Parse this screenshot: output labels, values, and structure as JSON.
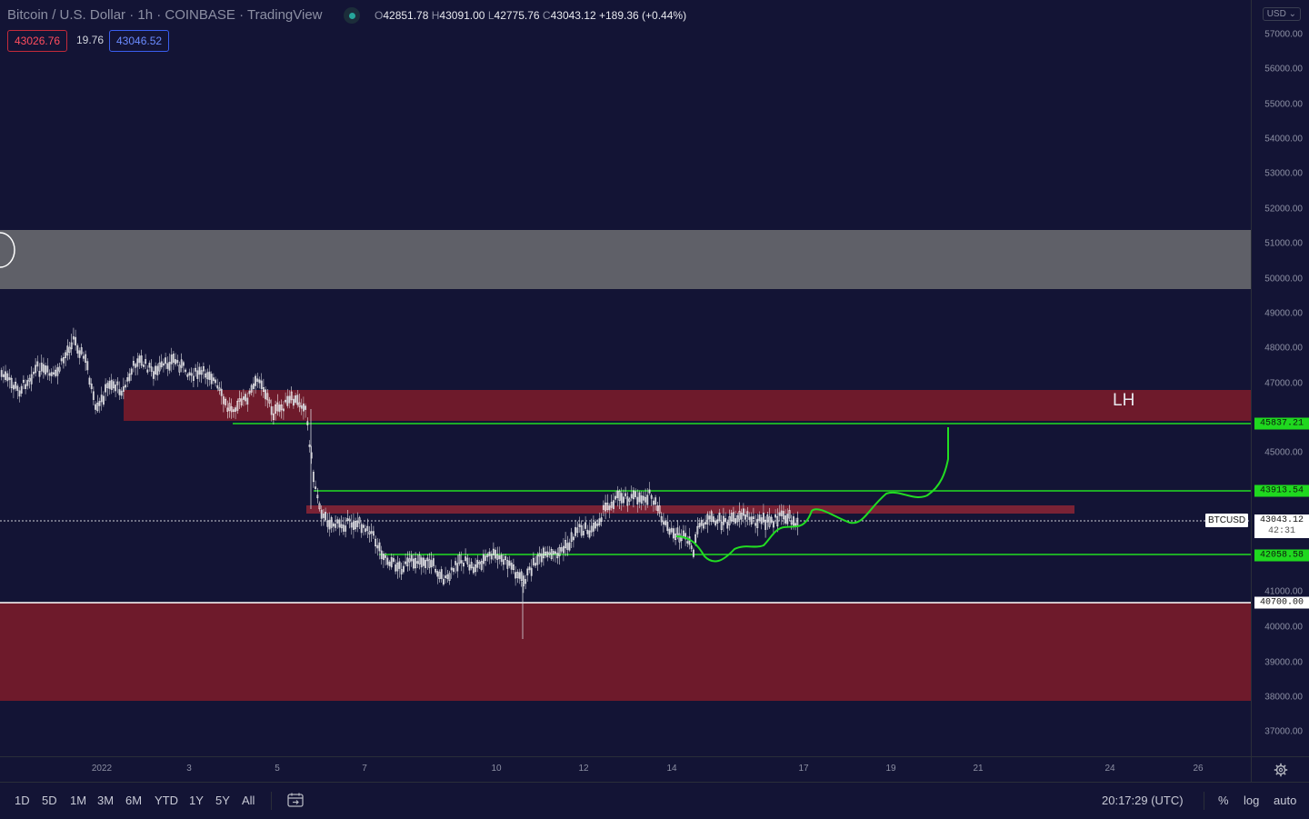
{
  "legend": {
    "title": "Bitcoin / U.S. Dollar · 1h · COINBASE · TradingView",
    "ohlc": {
      "o_key": "O",
      "o_val": "42851.78",
      "h_key": "H",
      "h_val": "43091.00",
      "l_key": "L",
      "l_val": "42775.76",
      "c_key": "C",
      "c_val": "43043.12",
      "change": "+189.36 (+0.44%)"
    },
    "bid": "43026.76",
    "spread": "19.76",
    "ask": "43046.52"
  },
  "currency_button": "USD",
  "price_ticks": [
    "57000.00",
    "56000.00",
    "55000.00",
    "54000.00",
    "53000.00",
    "52000.00",
    "51000.00",
    "50000.00",
    "49000.00",
    "48000.00",
    "47000.00",
    "45000.00",
    "41000.00",
    "40000.00",
    "39000.00",
    "38000.00",
    "37000.00"
  ],
  "price_labels": {
    "level_high": "45837.21",
    "level_mid": "43913.54",
    "level_low": "42058.58",
    "support_line": "40700.00",
    "current_price": "43043.12",
    "countdown": "42:31"
  },
  "symbol_tag": "BTCUSD",
  "annotation_lh": "LH",
  "time_labels": [
    "2022",
    "3",
    "5",
    "7",
    "10",
    "12",
    "14",
    "17",
    "19",
    "21",
    "24",
    "26"
  ],
  "range_buttons": [
    "1D",
    "5D",
    "1M",
    "3M",
    "6M",
    "YTD",
    "1Y",
    "5Y",
    "All"
  ],
  "clock": "20:17:29 (UTC)",
  "bottom_options": {
    "percent": "%",
    "log": "log",
    "auto": "auto"
  },
  "colors": {
    "background": "#131435",
    "grey_zone": "#5f6068",
    "red_zone": "#6e1a2b",
    "green_line": "#22dd22",
    "candle_up": "#ffffff",
    "candle_down": "#d6d6dc"
  },
  "icons": {
    "compare": "calendar-goto-icon",
    "settings": "gear-icon"
  }
}
